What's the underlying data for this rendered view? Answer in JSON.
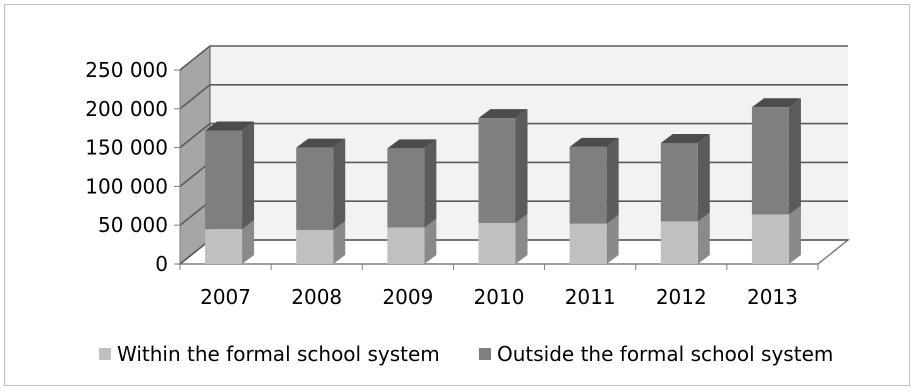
{
  "chart_data": {
    "type": "bar",
    "stacked": true,
    "three_d": true,
    "categories": [
      "2007",
      "2008",
      "2009",
      "2010",
      "2011",
      "2012",
      "2013"
    ],
    "series": [
      {
        "name": "Within the formal school system",
        "values": [
          45000,
          44000,
          47000,
          53000,
          52000,
          55000,
          64000
        ],
        "color": "#c0c0c0"
      },
      {
        "name": "Outside the formal school system",
        "values": [
          127000,
          106000,
          102000,
          135000,
          99000,
          101000,
          138000
        ],
        "color": "#7f7f7f"
      }
    ],
    "ylim": [
      0,
      250000
    ],
    "yticks": [
      0,
      50000,
      100000,
      150000,
      200000,
      250000
    ],
    "ytick_labels": [
      "0",
      "50 000",
      "100 000",
      "150 000",
      "200 000",
      "250 000"
    ],
    "grid": true,
    "legend_position": "bottom"
  }
}
